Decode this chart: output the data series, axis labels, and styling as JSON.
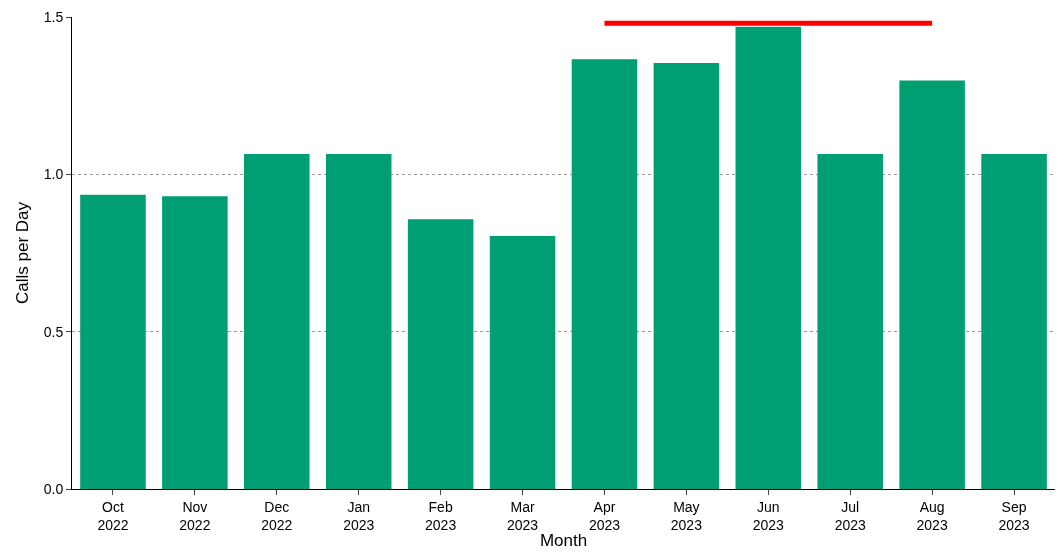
{
  "chart_data": {
    "type": "bar",
    "xlabel": "Month",
    "ylabel": "Calls per Day",
    "categories": [
      "Oct\n2022",
      "Nov\n2022",
      "Dec\n2022",
      "Jan\n2023",
      "Feb\n2023",
      "Mar\n2023",
      "Apr\n2023",
      "May\n2023",
      "Jun\n2023",
      "Jul\n2023",
      "Aug\n2023",
      "Sep\n2023"
    ],
    "series": [
      {
        "color": "#009e73",
        "values": [
          0.935,
          0.93,
          1.065,
          1.065,
          0.857,
          0.804,
          1.366,
          1.354,
          1.469,
          1.065,
          1.298,
          1.065
        ]
      },
      {
        "type": "line",
        "color": "#ff0000",
        "values": [
          null,
          null,
          null,
          null,
          null,
          null,
          1.48,
          1.48,
          1.48,
          1.48,
          1.48,
          null
        ]
      }
    ],
    "ylim": [
      0,
      1.5
    ],
    "yticks": [
      {
        "value": 0,
        "label": "0.0"
      },
      {
        "value": 0.5,
        "label": "0.5"
      },
      {
        "value": 1,
        "label": "1.0"
      },
      {
        "value": 1.5,
        "label": "1.5"
      }
    ],
    "grid": "y",
    "legend": false
  }
}
